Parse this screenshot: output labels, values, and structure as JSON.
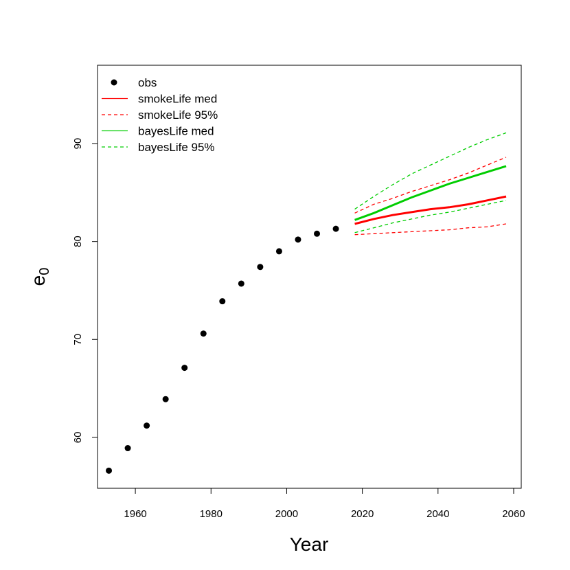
{
  "chart_data": {
    "type": "line",
    "xlabel": "Year",
    "ylabel": "e",
    "ylabel_sub": "0",
    "xlim": [
      1950,
      2062
    ],
    "ylim": [
      54.8,
      98.0
    ],
    "xticks": [
      1960,
      1980,
      2000,
      2020,
      2040,
      2060
    ],
    "yticks": [
      60,
      70,
      80,
      90
    ],
    "grid": false,
    "legend_position": "top-left",
    "series": [
      {
        "name": "obs",
        "kind": "points",
        "color": "#000000",
        "x": [
          1953,
          1958,
          1963,
          1968,
          1973,
          1978,
          1983,
          1988,
          1993,
          1998,
          2003,
          2008,
          2013
        ],
        "y": [
          56.6,
          58.9,
          61.2,
          63.9,
          67.1,
          70.6,
          73.9,
          75.7,
          77.4,
          79.0,
          80.2,
          80.8,
          81.3
        ]
      },
      {
        "name": "smokeLife med",
        "kind": "solid",
        "color": "#ff0000",
        "x": [
          2018,
          2023,
          2028,
          2033,
          2038,
          2043,
          2048,
          2053,
          2058
        ],
        "y": [
          81.8,
          82.3,
          82.7,
          83.0,
          83.3,
          83.5,
          83.8,
          84.2,
          84.6
        ]
      },
      {
        "name": "smokeLife 95%",
        "kind": "dashed",
        "color": "#ff0000",
        "bands": [
          {
            "x": [
              2018,
              2023,
              2028,
              2033,
              2038,
              2043,
              2048,
              2053,
              2058
            ],
            "y": [
              80.7,
              80.8,
              80.9,
              81.0,
              81.1,
              81.2,
              81.4,
              81.5,
              81.8
            ]
          },
          {
            "x": [
              2018,
              2023,
              2028,
              2033,
              2038,
              2043,
              2048,
              2053,
              2058
            ],
            "y": [
              82.9,
              83.8,
              84.4,
              85.1,
              85.7,
              86.3,
              87.0,
              87.8,
              88.6
            ]
          }
        ]
      },
      {
        "name": "bayesLife med",
        "kind": "solid",
        "color": "#00cd00",
        "x": [
          2018,
          2023,
          2028,
          2033,
          2038,
          2043,
          2048,
          2053,
          2058
        ],
        "y": [
          82.2,
          82.9,
          83.7,
          84.5,
          85.2,
          85.9,
          86.5,
          87.1,
          87.7
        ]
      },
      {
        "name": "bayesLife 95%",
        "kind": "dashed",
        "color": "#00cd00",
        "bands": [
          {
            "x": [
              2018,
              2023,
              2028,
              2033,
              2038,
              2043,
              2048,
              2053,
              2058
            ],
            "y": [
              80.9,
              81.4,
              81.9,
              82.3,
              82.7,
              83.0,
              83.4,
              83.8,
              84.2
            ]
          },
          {
            "x": [
              2018,
              2023,
              2028,
              2033,
              2038,
              2043,
              2048,
              2053,
              2058
            ],
            "y": [
              83.3,
              84.6,
              85.8,
              86.9,
              87.8,
              88.7,
              89.6,
              90.4,
              91.1
            ]
          }
        ]
      }
    ]
  }
}
